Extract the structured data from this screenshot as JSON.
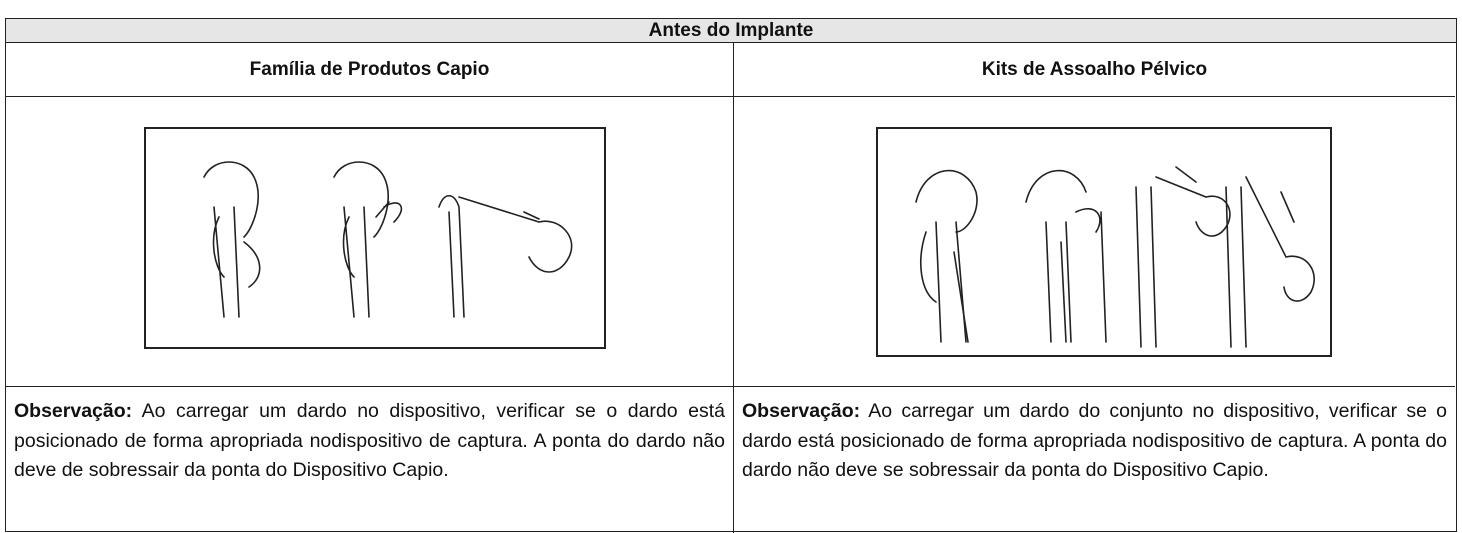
{
  "header": {
    "title": "Antes do Implante"
  },
  "columns": [
    {
      "heading": "Família de Produtos Capio",
      "note_label": "Observação:",
      "note_text": "Ao carregar um dardo no dispositivo, verificar se o dardo está posicionado de forma apropriada nodispositivo de captura. A ponta do dardo não deve de sobressair da ponta do Dispositivo Capio."
    },
    {
      "heading": "Kits de Assoalho Pélvico",
      "note_label": "Observação:",
      "note_text": "Ao carregar um dardo do conjunto no dispositivo, verificar se o dardo está posicionado de forma apropriada nodispositivo de captura. A ponta do dardo não deve se sobressair da ponta do Dispositivo Capio."
    }
  ]
}
